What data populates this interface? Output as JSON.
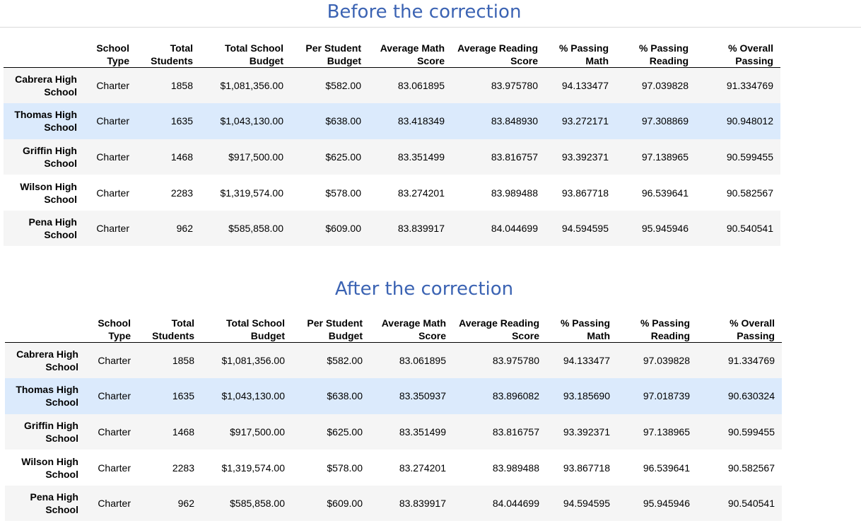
{
  "before": {
    "title": "Before the correction"
  },
  "after": {
    "title": "After the correction"
  },
  "columns": [
    "School Type",
    "Total Students",
    "Total School Budget",
    "Per Student Budget",
    "Average Math Score",
    "Average Reading Score",
    "% Passing Math",
    "% Passing Reading",
    "% Overall Passing"
  ],
  "before_rows": [
    {
      "name": "Cabrera High School",
      "cells": [
        "Charter",
        "1858",
        "$1,081,356.00",
        "$582.00",
        "83.061895",
        "83.975780",
        "94.133477",
        "97.039828",
        "91.334769"
      ]
    },
    {
      "name": "Thomas High School",
      "cells": [
        "Charter",
        "1635",
        "$1,043,130.00",
        "$638.00",
        "83.418349",
        "83.848930",
        "93.272171",
        "97.308869",
        "90.948012"
      ]
    },
    {
      "name": "Griffin High School",
      "cells": [
        "Charter",
        "1468",
        "$917,500.00",
        "$625.00",
        "83.351499",
        "83.816757",
        "93.392371",
        "97.138965",
        "90.599455"
      ]
    },
    {
      "name": "Wilson High School",
      "cells": [
        "Charter",
        "2283",
        "$1,319,574.00",
        "$578.00",
        "83.274201",
        "83.989488",
        "93.867718",
        "96.539641",
        "90.582567"
      ]
    },
    {
      "name": "Pena High School",
      "cells": [
        "Charter",
        "962",
        "$585,858.00",
        "$609.00",
        "83.839917",
        "84.044699",
        "94.594595",
        "95.945946",
        "90.540541"
      ]
    }
  ],
  "after_rows": [
    {
      "name": "Cabrera High School",
      "cells": [
        "Charter",
        "1858",
        "$1,081,356.00",
        "$582.00",
        "83.061895",
        "83.975780",
        "94.133477",
        "97.039828",
        "91.334769"
      ]
    },
    {
      "name": "Thomas High School",
      "cells": [
        "Charter",
        "1635",
        "$1,043,130.00",
        "$638.00",
        "83.350937",
        "83.896082",
        "93.185690",
        "97.018739",
        "90.630324"
      ]
    },
    {
      "name": "Griffin High School",
      "cells": [
        "Charter",
        "1468",
        "$917,500.00",
        "$625.00",
        "83.351499",
        "83.816757",
        "93.392371",
        "97.138965",
        "90.599455"
      ]
    },
    {
      "name": "Wilson High School",
      "cells": [
        "Charter",
        "2283",
        "$1,319,574.00",
        "$578.00",
        "83.274201",
        "83.989488",
        "93.867718",
        "96.539641",
        "90.582567"
      ]
    },
    {
      "name": "Pena High School",
      "cells": [
        "Charter",
        "962",
        "$585,858.00",
        "$609.00",
        "83.839917",
        "84.044699",
        "94.594595",
        "95.945946",
        "90.540541"
      ]
    }
  ],
  "highlight_row": 1,
  "colors": {
    "title": "#3b63b3",
    "highlight": "#dbeafc",
    "stripe": "#f5f5f5"
  }
}
